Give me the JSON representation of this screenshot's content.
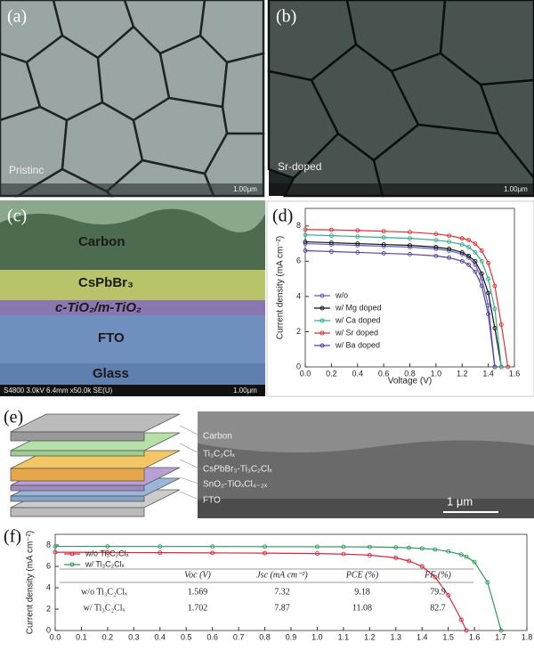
{
  "panel_labels": [
    "(a)",
    "(b)",
    "(c)",
    "(d)",
    "(e)",
    "(f)"
  ],
  "sem_a": {
    "caption": "Pristinc",
    "scale": "1.00μm"
  },
  "sem_b": {
    "caption": "Sr-doped",
    "scale": "1.00μm"
  },
  "sem_c": {
    "layers": [
      "Carbon",
      "CsPbBr₃",
      "c-TiO₂/m-TiO₂",
      "FTO",
      "Glass"
    ],
    "info": "S4800 3.0kV 6.4mm x50.0k SE(U)",
    "scale": "1.00μm"
  },
  "sem_e": {
    "layers": [
      "Carbon",
      "Ti₃C₂Clₓ",
      "CsPbBr₃-Ti₃C₂Clₓ",
      "SnO₂-TiOₓCl₄₋₂ₓ",
      "FTO"
    ],
    "scale": "1 μm"
  },
  "chart_data": [
    {
      "type": "line",
      "xlabel": "Voltage (V)",
      "ylabel": "Current density (mA cm⁻²)",
      "x": [
        0,
        0.2,
        0.4,
        0.6,
        0.8,
        1.0,
        1.1,
        1.2,
        1.25,
        1.3,
        1.35,
        1.4,
        1.45,
        1.5,
        1.55
      ],
      "series": [
        {
          "name": "w/o",
          "color": "#5a5fc8",
          "values": [
            7.0,
            6.95,
            6.9,
            6.85,
            6.8,
            6.7,
            6.6,
            6.4,
            6.2,
            5.8,
            5.0,
            3.5,
            0,
            null,
            null
          ]
        },
        {
          "name": "w/ Mg doped",
          "color": "#111111",
          "values": [
            7.1,
            7.05,
            7.0,
            6.95,
            6.9,
            6.8,
            6.7,
            6.5,
            6.3,
            6.0,
            5.3,
            4.2,
            2.2,
            0,
            null
          ]
        },
        {
          "name": "w/ Ca doped",
          "color": "#35ad8a",
          "values": [
            7.5,
            7.45,
            7.4,
            7.35,
            7.3,
            7.2,
            7.1,
            6.95,
            6.8,
            6.5,
            6.0,
            5.0,
            3.3,
            0,
            null
          ]
        },
        {
          "name": "w/ Sr doped",
          "color": "#e03030",
          "values": [
            7.8,
            7.78,
            7.75,
            7.7,
            7.65,
            7.55,
            7.45,
            7.3,
            7.2,
            7.0,
            6.6,
            5.9,
            4.6,
            2.4,
            0
          ]
        },
        {
          "name": "w/ Ba doped",
          "color": "#5b3fa0",
          "values": [
            6.6,
            6.55,
            6.5,
            6.45,
            6.4,
            6.3,
            6.2,
            6.0,
            5.8,
            5.4,
            4.6,
            3.0,
            0,
            null,
            null
          ]
        }
      ],
      "xlim": [
        0,
        1.6
      ],
      "ylim": [
        0,
        9
      ],
      "xticks": [
        {
          "value": 0,
          "label": "0.0"
        },
        0.2,
        0.4,
        0.6,
        0.8,
        {
          "value": 1,
          "label": "1.0"
        },
        1.2,
        1.4,
        1.6
      ],
      "yticks": [
        0,
        2,
        4,
        6,
        8
      ],
      "legend": "lower left"
    },
    {
      "type": "line",
      "ylabel": "Current density (mA cm⁻²)",
      "x": [
        0,
        0.2,
        0.4,
        0.6,
        0.8,
        1.0,
        1.1,
        1.2,
        1.3,
        1.35,
        1.4,
        1.45,
        1.5,
        1.55,
        1.569,
        1.6,
        1.65,
        1.702
      ],
      "series": [
        {
          "name": "w/o Ti₃C₂Clₓ",
          "color": "#d42a3a",
          "values": [
            7.32,
            7.3,
            7.28,
            7.26,
            7.24,
            7.2,
            7.15,
            7.05,
            6.8,
            6.5,
            6.0,
            5.0,
            3.3,
            1.0,
            0,
            null,
            null,
            null
          ]
        },
        {
          "name": "w/  Ti₃C₂Clₓ",
          "color": "#2f9a5a",
          "values": [
            7.87,
            7.87,
            7.86,
            7.86,
            7.85,
            7.84,
            7.83,
            7.82,
            7.78,
            7.74,
            7.68,
            7.58,
            7.4,
            7.1,
            6.9,
            6.4,
            4.5,
            0
          ]
        }
      ],
      "xlim": [
        0,
        1.8
      ],
      "ylim": [
        0,
        9
      ],
      "xticks": [
        {
          "value": 0,
          "label": "0.0"
        },
        0.1,
        0.2,
        0.3,
        0.4,
        0.5,
        0.6,
        0.7,
        0.8,
        0.9,
        {
          "value": 1,
          "label": "1.0"
        },
        1.1,
        1.2,
        1.3,
        1.4,
        1.5,
        1.6,
        1.7,
        1.8
      ],
      "yticks": [
        0,
        2,
        4,
        6,
        8
      ],
      "legend": "upper left",
      "table": {
        "header": [
          "Voc (V)",
          "Jsc (mA cm⁻²)",
          "PCE (%)",
          "FF (%)"
        ],
        "rows": [
          [
            "w/o  Ti₃C₂Clₓ",
            1.569,
            7.32,
            9.18,
            79.9
          ],
          [
            "w/  Ti₃C₂Clₓ",
            1.702,
            7.87,
            11.08,
            82.7
          ]
        ]
      }
    }
  ]
}
